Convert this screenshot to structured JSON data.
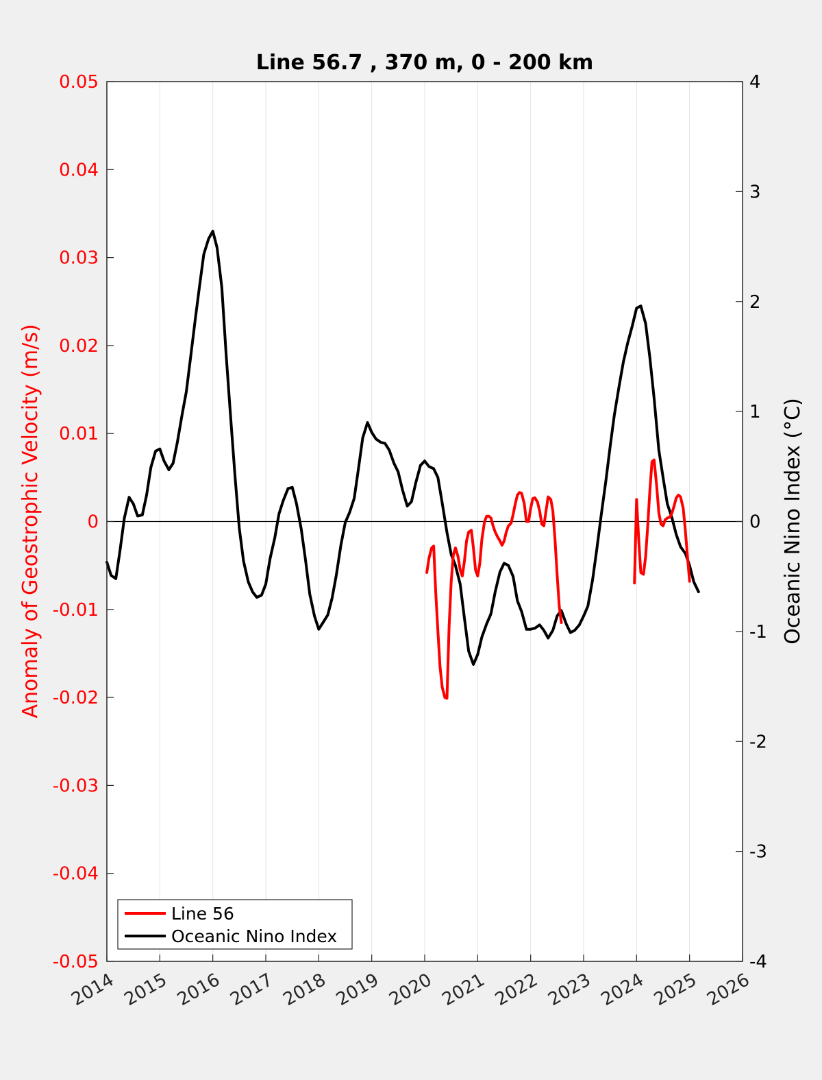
{
  "chart_data": {
    "type": "line",
    "title": "Line 56.7 , 370 m, 0 - 200 km",
    "xlabel": "",
    "ylabel": "Anomaly of Geostrophic Velocity (m/s)",
    "ylabel_right": "Oceanic Nino Index (°C)",
    "xlim": [
      2014,
      2026
    ],
    "ylim": [
      -0.05,
      0.05
    ],
    "ylim_right": [
      -4,
      4
    ],
    "x_ticks": [
      "2014",
      "2015",
      "2016",
      "2017",
      "2018",
      "2019",
      "2020",
      "2021",
      "2022",
      "2023",
      "2024",
      "2025",
      "2026"
    ],
    "y_ticks_left": [
      "0.05",
      "0.04",
      "0.03",
      "0.02",
      "0.01",
      "0",
      "-0.01",
      "-0.02",
      "-0.03",
      "-0.04",
      "-0.05"
    ],
    "y_ticks_right": [
      "4",
      "3",
      "2",
      "1",
      "0",
      "-1",
      "-2",
      "-3",
      "-4"
    ],
    "grid": "vertical",
    "legend_position": "bottom-left",
    "colors": {
      "left_axis": "#ff0000",
      "line56": "#ff0000",
      "oni": "#000000"
    },
    "series": [
      {
        "name": "Line 56",
        "axis": "left",
        "color": "#ff0000",
        "segments": [
          [
            [
              2020.04,
              -0.0058
            ],
            [
              2020.08,
              -0.0042
            ],
            [
              2020.13,
              -0.003
            ],
            [
              2020.17,
              -0.0028
            ],
            [
              2020.21,
              -0.0082
            ],
            [
              2020.25,
              -0.0125
            ],
            [
              2020.29,
              -0.0165
            ],
            [
              2020.33,
              -0.0188
            ],
            [
              2020.38,
              -0.02
            ],
            [
              2020.42,
              -0.0201
            ],
            [
              2020.46,
              -0.012
            ],
            [
              2020.5,
              -0.0068
            ],
            [
              2020.54,
              -0.0038
            ],
            [
              2020.58,
              -0.003
            ],
            [
              2020.63,
              -0.004
            ],
            [
              2020.67,
              -0.0055
            ],
            [
              2020.71,
              -0.0062
            ],
            [
              2020.75,
              -0.0045
            ],
            [
              2020.79,
              -0.0022
            ],
            [
              2020.83,
              -0.0012
            ],
            [
              2020.88,
              -0.001
            ],
            [
              2020.92,
              -0.003
            ],
            [
              2020.96,
              -0.0055
            ],
            [
              2021.0,
              -0.0062
            ],
            [
              2021.04,
              -0.0048
            ],
            [
              2021.08,
              -0.002
            ],
            [
              2021.13,
              0.0
            ],
            [
              2021.17,
              0.0006
            ],
            [
              2021.21,
              0.0006
            ],
            [
              2021.25,
              0.0004
            ],
            [
              2021.29,
              -0.0005
            ],
            [
              2021.33,
              -0.0012
            ],
            [
              2021.38,
              -0.0018
            ],
            [
              2021.42,
              -0.0022
            ],
            [
              2021.46,
              -0.0027
            ],
            [
              2021.5,
              -0.0022
            ],
            [
              2021.54,
              -0.0012
            ],
            [
              2021.58,
              -0.0005
            ],
            [
              2021.63,
              -0.0002
            ],
            [
              2021.67,
              0.0008
            ],
            [
              2021.71,
              0.002
            ],
            [
              2021.75,
              0.003
            ],
            [
              2021.79,
              0.0033
            ],
            [
              2021.83,
              0.0032
            ],
            [
              2021.88,
              0.002
            ],
            [
              2021.92,
              0.0
            ],
            [
              2021.96,
              0.0
            ],
            [
              2022.0,
              0.0015
            ],
            [
              2022.04,
              0.0026
            ],
            [
              2022.08,
              0.0027
            ],
            [
              2022.13,
              0.0022
            ],
            [
              2022.17,
              0.0012
            ],
            [
              2022.21,
              -0.0003
            ],
            [
              2022.25,
              -0.0005
            ],
            [
              2022.29,
              0.0012
            ],
            [
              2022.33,
              0.0028
            ],
            [
              2022.38,
              0.0025
            ],
            [
              2022.42,
              0.0012
            ],
            [
              2022.46,
              -0.002
            ],
            [
              2022.5,
              -0.006
            ],
            [
              2022.54,
              -0.0096
            ],
            [
              2022.58,
              -0.0115
            ]
          ],
          [
            [
              2023.96,
              -0.007
            ],
            [
              2024.0,
              0.0025
            ],
            [
              2024.04,
              -0.002
            ],
            [
              2024.08,
              -0.0058
            ],
            [
              2024.13,
              -0.006
            ],
            [
              2024.17,
              -0.004
            ],
            [
              2024.21,
              -0.0005
            ],
            [
              2024.25,
              0.0035
            ],
            [
              2024.29,
              0.0068
            ],
            [
              2024.33,
              0.007
            ],
            [
              2024.38,
              0.004
            ],
            [
              2024.42,
              0.001
            ],
            [
              2024.46,
              -0.0003
            ],
            [
              2024.5,
              -0.0005
            ],
            [
              2024.54,
              0.0002
            ],
            [
              2024.58,
              0.0004
            ],
            [
              2024.63,
              0.0005
            ],
            [
              2024.67,
              0.001
            ],
            [
              2024.71,
              0.0018
            ],
            [
              2024.75,
              0.0027
            ],
            [
              2024.79,
              0.003
            ],
            [
              2024.83,
              0.0028
            ],
            [
              2024.88,
              0.0015
            ],
            [
              2024.92,
              -0.001
            ],
            [
              2024.96,
              -0.004
            ],
            [
              2025.0,
              -0.0068
            ]
          ]
        ]
      },
      {
        "name": "Oceanic Nino Index",
        "axis": "right",
        "color": "#000000",
        "segments": [
          [
            [
              2014.0,
              -0.37
            ],
            [
              2014.08,
              -0.49
            ],
            [
              2014.17,
              -0.52
            ],
            [
              2014.25,
              -0.26
            ],
            [
              2014.33,
              0.03
            ],
            [
              2014.42,
              0.22
            ],
            [
              2014.5,
              0.16
            ],
            [
              2014.58,
              0.05
            ],
            [
              2014.67,
              0.06
            ],
            [
              2014.75,
              0.24
            ],
            [
              2014.83,
              0.49
            ],
            [
              2014.92,
              0.64
            ],
            [
              2015.0,
              0.66
            ],
            [
              2015.08,
              0.55
            ],
            [
              2015.17,
              0.47
            ],
            [
              2015.25,
              0.53
            ],
            [
              2015.33,
              0.72
            ],
            [
              2015.42,
              0.97
            ],
            [
              2015.5,
              1.18
            ],
            [
              2015.58,
              1.49
            ],
            [
              2015.67,
              1.84
            ],
            [
              2015.75,
              2.14
            ],
            [
              2015.83,
              2.43
            ],
            [
              2015.92,
              2.57
            ],
            [
              2016.0,
              2.64
            ],
            [
              2016.08,
              2.49
            ],
            [
              2016.17,
              2.13
            ],
            [
              2016.25,
              1.53
            ],
            [
              2016.33,
              0.99
            ],
            [
              2016.42,
              0.41
            ],
            [
              2016.5,
              -0.06
            ],
            [
              2016.58,
              -0.36
            ],
            [
              2016.67,
              -0.55
            ],
            [
              2016.75,
              -0.64
            ],
            [
              2016.83,
              -0.69
            ],
            [
              2016.92,
              -0.67
            ],
            [
              2017.0,
              -0.57
            ],
            [
              2017.08,
              -0.34
            ],
            [
              2017.17,
              -0.15
            ],
            [
              2017.25,
              0.07
            ],
            [
              2017.33,
              0.19
            ],
            [
              2017.42,
              0.3
            ],
            [
              2017.5,
              0.31
            ],
            [
              2017.58,
              0.16
            ],
            [
              2017.67,
              -0.07
            ],
            [
              2017.75,
              -0.35
            ],
            [
              2017.83,
              -0.66
            ],
            [
              2017.92,
              -0.86
            ],
            [
              2018.0,
              -0.98
            ],
            [
              2018.08,
              -0.92
            ],
            [
              2018.17,
              -0.85
            ],
            [
              2018.25,
              -0.7
            ],
            [
              2018.33,
              -0.49
            ],
            [
              2018.42,
              -0.21
            ],
            [
              2018.5,
              -0.01
            ],
            [
              2018.58,
              0.08
            ],
            [
              2018.67,
              0.21
            ],
            [
              2018.75,
              0.48
            ],
            [
              2018.83,
              0.76
            ],
            [
              2018.92,
              0.9
            ],
            [
              2019.0,
              0.81
            ],
            [
              2019.08,
              0.75
            ],
            [
              2019.17,
              0.72
            ],
            [
              2019.25,
              0.71
            ],
            [
              2019.33,
              0.65
            ],
            [
              2019.42,
              0.53
            ],
            [
              2019.5,
              0.45
            ],
            [
              2019.58,
              0.29
            ],
            [
              2019.67,
              0.14
            ],
            [
              2019.75,
              0.18
            ],
            [
              2019.83,
              0.35
            ],
            [
              2019.92,
              0.51
            ],
            [
              2020.0,
              0.55
            ],
            [
              2020.08,
              0.5
            ],
            [
              2020.17,
              0.48
            ],
            [
              2020.25,
              0.4
            ],
            [
              2020.33,
              0.17
            ],
            [
              2020.42,
              -0.1
            ],
            [
              2020.5,
              -0.3
            ],
            [
              2020.58,
              -0.4
            ],
            [
              2020.67,
              -0.57
            ],
            [
              2020.75,
              -0.88
            ],
            [
              2020.83,
              -1.18
            ],
            [
              2020.92,
              -1.3
            ],
            [
              2021.0,
              -1.21
            ],
            [
              2021.08,
              -1.05
            ],
            [
              2021.17,
              -0.93
            ],
            [
              2021.25,
              -0.84
            ],
            [
              2021.33,
              -0.64
            ],
            [
              2021.42,
              -0.46
            ],
            [
              2021.5,
              -0.38
            ],
            [
              2021.58,
              -0.4
            ],
            [
              2021.67,
              -0.5
            ],
            [
              2021.75,
              -0.72
            ],
            [
              2021.83,
              -0.82
            ],
            [
              2021.92,
              -0.98
            ],
            [
              2022.0,
              -0.98
            ],
            [
              2022.08,
              -0.97
            ],
            [
              2022.17,
              -0.94
            ],
            [
              2022.25,
              -0.99
            ],
            [
              2022.33,
              -1.06
            ],
            [
              2022.42,
              -0.99
            ],
            [
              2022.5,
              -0.86
            ],
            [
              2022.58,
              -0.81
            ],
            [
              2022.67,
              -0.93
            ],
            [
              2022.75,
              -1.01
            ],
            [
              2022.83,
              -0.99
            ],
            [
              2022.92,
              -0.94
            ],
            [
              2023.0,
              -0.86
            ],
            [
              2023.08,
              -0.77
            ],
            [
              2023.17,
              -0.53
            ],
            [
              2023.25,
              -0.25
            ],
            [
              2023.33,
              0.05
            ],
            [
              2023.42,
              0.37
            ],
            [
              2023.5,
              0.68
            ],
            [
              2023.58,
              0.97
            ],
            [
              2023.67,
              1.23
            ],
            [
              2023.75,
              1.45
            ],
            [
              2023.83,
              1.62
            ],
            [
              2023.92,
              1.78
            ],
            [
              2024.0,
              1.94
            ],
            [
              2024.08,
              1.96
            ],
            [
              2024.17,
              1.8
            ],
            [
              2024.25,
              1.49
            ],
            [
              2024.33,
              1.12
            ],
            [
              2024.42,
              0.65
            ],
            [
              2024.5,
              0.4
            ],
            [
              2024.58,
              0.16
            ],
            [
              2024.67,
              0.03
            ],
            [
              2024.75,
              -0.12
            ],
            [
              2024.83,
              -0.23
            ],
            [
              2024.92,
              -0.29
            ],
            [
              2025.0,
              -0.4
            ],
            [
              2025.08,
              -0.55
            ],
            [
              2025.17,
              -0.64
            ]
          ]
        ]
      }
    ]
  }
}
